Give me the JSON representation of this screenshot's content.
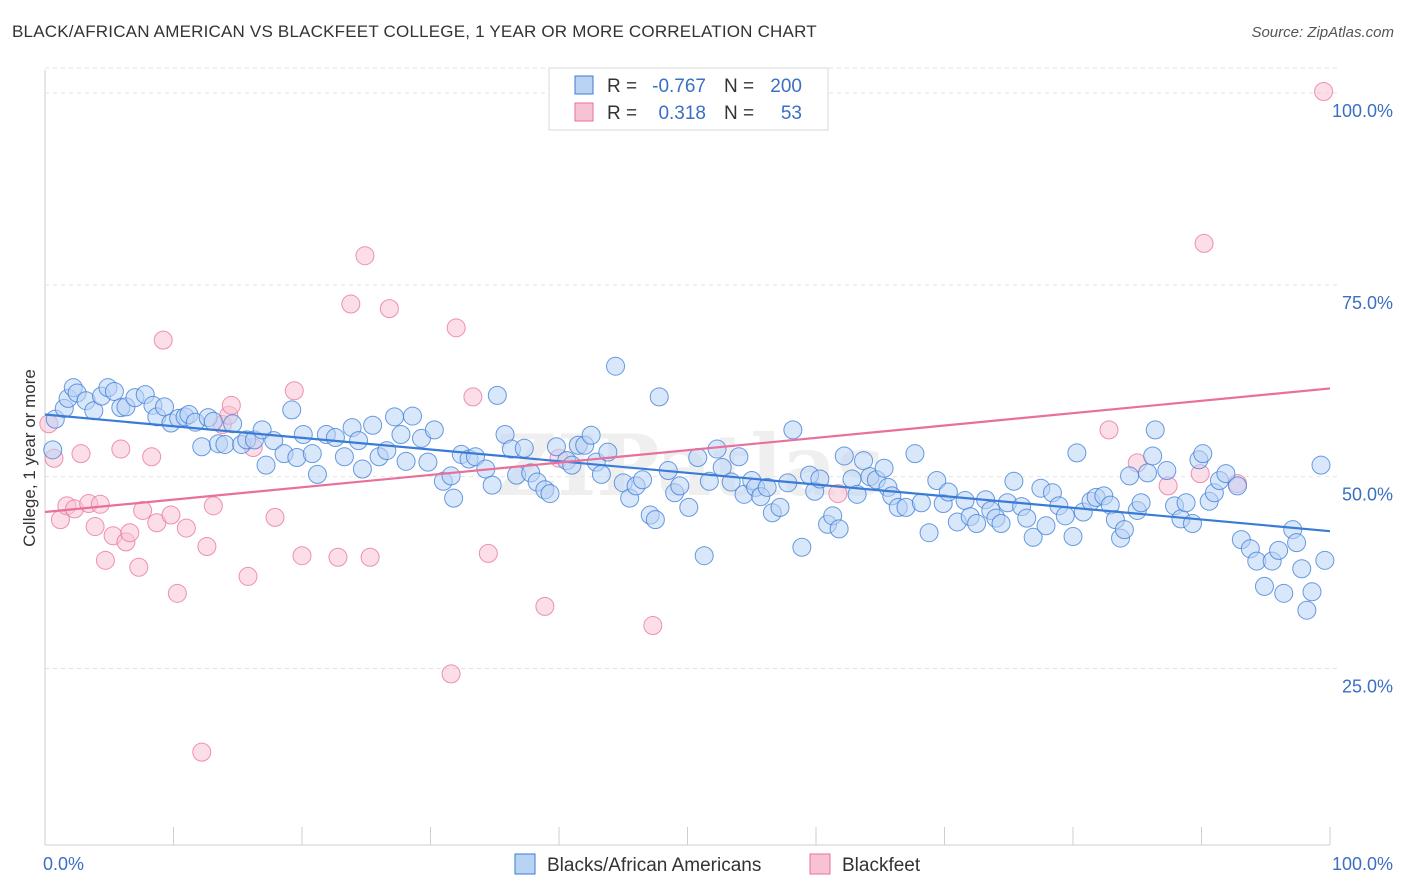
{
  "title": "BLACK/AFRICAN AMERICAN VS BLACKFEET COLLEGE, 1 YEAR OR MORE CORRELATION CHART",
  "source": "Source: ZipAtlas.com",
  "watermark": "ZIPatlas",
  "colors": {
    "blue": "#3a7bd5",
    "blue_fill": "#b9d3f5",
    "pink": "#e8709a",
    "pink_fill": "#f7c3d4",
    "axis_label": "#3a6fc4"
  },
  "chart_data": {
    "type": "scatter",
    "title": "BLACK/AFRICAN AMERICAN VS BLACKFEET COLLEGE, 1 YEAR OR MORE CORRELATION CHART",
    "xlabel": "",
    "ylabel": "College, 1 year or more",
    "xlim": [
      0,
      100
    ],
    "ylim": [
      2,
      103
    ],
    "x_tick_labels": [
      "0.0%",
      "100.0%"
    ],
    "y_ticks": [
      25,
      50,
      75,
      100
    ],
    "y_tick_labels": [
      "25.0%",
      "50.0%",
      "75.0%",
      "100.0%"
    ],
    "grid": true,
    "legend_top": [
      {
        "r_label": "R =",
        "r_value": "-0.767",
        "n_label": "N =",
        "n_value": "200"
      },
      {
        "r_label": "R =",
        "r_value": "0.318",
        "n_label": "N =",
        "n_value": "53"
      }
    ],
    "series": [
      {
        "name": "Blacks/African Americans",
        "trend": [
          [
            0,
            58.1
          ],
          [
            100,
            42.9
          ]
        ],
        "points": [
          [
            0.6,
            53.5
          ],
          [
            0.8,
            57.5
          ],
          [
            1.5,
            58.9
          ],
          [
            1.8,
            60.2
          ],
          [
            2.2,
            61.6
          ],
          [
            2.5,
            60.9
          ],
          [
            3.2,
            59.9
          ],
          [
            3.8,
            58.6
          ],
          [
            4.4,
            60.5
          ],
          [
            4.9,
            61.6
          ],
          [
            5.4,
            61.1
          ],
          [
            5.9,
            59.0
          ],
          [
            6.3,
            59.1
          ],
          [
            7.0,
            60.3
          ],
          [
            7.8,
            60.7
          ],
          [
            8.4,
            59.3
          ],
          [
            8.7,
            57.8
          ],
          [
            9.3,
            59.1
          ],
          [
            9.8,
            57.0
          ],
          [
            10.4,
            57.6
          ],
          [
            10.9,
            57.8
          ],
          [
            11.2,
            58.1
          ],
          [
            11.7,
            57.1
          ],
          [
            12.2,
            53.9
          ],
          [
            12.7,
            57.7
          ],
          [
            13.1,
            57.2
          ],
          [
            13.5,
            54.3
          ],
          [
            14.0,
            54.2
          ],
          [
            14.6,
            56.9
          ],
          [
            15.3,
            54.2
          ],
          [
            15.7,
            54.8
          ],
          [
            16.3,
            54.8
          ],
          [
            16.9,
            56.1
          ],
          [
            17.2,
            51.5
          ],
          [
            17.8,
            54.7
          ],
          [
            18.6,
            53.0
          ],
          [
            19.2,
            58.7
          ],
          [
            19.6,
            52.5
          ],
          [
            20.1,
            55.5
          ],
          [
            20.8,
            53.0
          ],
          [
            21.2,
            50.3
          ],
          [
            21.9,
            55.5
          ],
          [
            22.6,
            55.1
          ],
          [
            23.3,
            52.6
          ],
          [
            23.9,
            56.4
          ],
          [
            24.4,
            54.7
          ],
          [
            24.7,
            51.0
          ],
          [
            25.5,
            56.7
          ],
          [
            26.0,
            52.6
          ],
          [
            26.6,
            53.4
          ],
          [
            27.2,
            57.8
          ],
          [
            27.7,
            55.5
          ],
          [
            28.1,
            52.0
          ],
          [
            28.6,
            57.9
          ],
          [
            29.3,
            55.0
          ],
          [
            29.8,
            51.9
          ],
          [
            30.3,
            56.1
          ],
          [
            31.0,
            49.4
          ],
          [
            31.6,
            50.1
          ],
          [
            31.8,
            47.2
          ],
          [
            32.4,
            52.9
          ],
          [
            33.0,
            52.3
          ],
          [
            33.5,
            52.6
          ],
          [
            34.3,
            51.0
          ],
          [
            34.8,
            48.9
          ],
          [
            35.2,
            60.6
          ],
          [
            35.8,
            55.5
          ],
          [
            36.3,
            53.6
          ],
          [
            36.7,
            50.2
          ],
          [
            37.3,
            53.7
          ],
          [
            37.8,
            50.5
          ],
          [
            38.3,
            49.3
          ],
          [
            38.9,
            48.3
          ],
          [
            39.3,
            47.8
          ],
          [
            39.8,
            53.9
          ],
          [
            40.6,
            52.1
          ],
          [
            41.0,
            51.5
          ],
          [
            41.5,
            54.1
          ],
          [
            42.0,
            54.1
          ],
          [
            42.5,
            55.4
          ],
          [
            42.9,
            51.9
          ],
          [
            43.3,
            50.3
          ],
          [
            43.8,
            53.2
          ],
          [
            44.4,
            64.4
          ],
          [
            45.0,
            49.2
          ],
          [
            45.5,
            47.2
          ],
          [
            46.0,
            48.8
          ],
          [
            46.5,
            49.6
          ],
          [
            47.1,
            45.0
          ],
          [
            47.5,
            44.4
          ],
          [
            47.8,
            60.4
          ],
          [
            48.5,
            50.8
          ],
          [
            49.0,
            47.9
          ],
          [
            49.4,
            48.8
          ],
          [
            50.1,
            46.0
          ],
          [
            50.8,
            52.5
          ],
          [
            51.3,
            39.7
          ],
          [
            51.7,
            49.4
          ],
          [
            52.3,
            53.6
          ],
          [
            52.7,
            51.2
          ],
          [
            53.4,
            49.3
          ],
          [
            54.0,
            52.6
          ],
          [
            54.4,
            47.7
          ],
          [
            55.0,
            49.5
          ],
          [
            55.3,
            48.6
          ],
          [
            55.7,
            47.4
          ],
          [
            56.2,
            48.6
          ],
          [
            56.6,
            45.3
          ],
          [
            57.2,
            46.0
          ],
          [
            57.8,
            49.2
          ],
          [
            58.2,
            56.1
          ],
          [
            58.9,
            40.8
          ],
          [
            59.5,
            50.2
          ],
          [
            59.9,
            48.1
          ],
          [
            60.3,
            49.7
          ],
          [
            60.9,
            43.8
          ],
          [
            61.3,
            44.9
          ],
          [
            61.8,
            43.2
          ],
          [
            62.2,
            52.7
          ],
          [
            62.8,
            49.7
          ],
          [
            63.2,
            47.7
          ],
          [
            63.7,
            52.1
          ],
          [
            64.2,
            50.0
          ],
          [
            64.7,
            49.6
          ],
          [
            65.3,
            51.1
          ],
          [
            65.6,
            48.6
          ],
          [
            65.9,
            47.5
          ],
          [
            66.4,
            46.0
          ],
          [
            67.0,
            46.0
          ],
          [
            67.7,
            53.0
          ],
          [
            68.2,
            46.6
          ],
          [
            68.8,
            42.7
          ],
          [
            69.4,
            49.5
          ],
          [
            69.9,
            46.5
          ],
          [
            70.3,
            48.0
          ],
          [
            71.0,
            44.1
          ],
          [
            71.6,
            46.9
          ],
          [
            72.0,
            44.8
          ],
          [
            72.5,
            43.9
          ],
          [
            73.2,
            47.0
          ],
          [
            73.6,
            45.6
          ],
          [
            74.0,
            44.6
          ],
          [
            74.4,
            43.9
          ],
          [
            74.9,
            46.6
          ],
          [
            75.4,
            49.4
          ],
          [
            76.0,
            46.1
          ],
          [
            76.4,
            44.6
          ],
          [
            76.9,
            42.1
          ],
          [
            77.5,
            48.5
          ],
          [
            77.9,
            43.6
          ],
          [
            78.4,
            47.9
          ],
          [
            78.9,
            46.2
          ],
          [
            79.4,
            44.9
          ],
          [
            80.0,
            42.2
          ],
          [
            80.3,
            53.1
          ],
          [
            80.8,
            45.4
          ],
          [
            81.4,
            46.8
          ],
          [
            81.8,
            47.3
          ],
          [
            82.4,
            47.5
          ],
          [
            82.9,
            46.3
          ],
          [
            83.3,
            44.4
          ],
          [
            83.7,
            42.0
          ],
          [
            84.0,
            43.1
          ],
          [
            84.4,
            50.1
          ],
          [
            85.0,
            45.6
          ],
          [
            85.3,
            46.6
          ],
          [
            85.8,
            50.5
          ],
          [
            86.2,
            52.7
          ],
          [
            86.4,
            56.1
          ],
          [
            87.3,
            50.8
          ],
          [
            87.9,
            46.2
          ],
          [
            88.4,
            44.5
          ],
          [
            88.8,
            46.6
          ],
          [
            89.3,
            43.9
          ],
          [
            89.8,
            52.2
          ],
          [
            90.1,
            53.0
          ],
          [
            90.6,
            46.8
          ],
          [
            91.0,
            47.9
          ],
          [
            91.4,
            49.5
          ],
          [
            91.9,
            50.4
          ],
          [
            92.8,
            48.8
          ],
          [
            93.1,
            41.8
          ],
          [
            93.8,
            40.6
          ],
          [
            94.3,
            39.0
          ],
          [
            94.9,
            35.7
          ],
          [
            95.5,
            39.0
          ],
          [
            96.0,
            40.4
          ],
          [
            96.4,
            34.8
          ],
          [
            97.1,
            43.1
          ],
          [
            97.4,
            41.4
          ],
          [
            97.8,
            38.0
          ],
          [
            98.2,
            32.6
          ],
          [
            98.6,
            35.0
          ],
          [
            99.3,
            51.5
          ],
          [
            99.6,
            39.1
          ]
        ]
      },
      {
        "name": "Blackfeet",
        "trend": [
          [
            0,
            45.4
          ],
          [
            100,
            61.5
          ]
        ],
        "points": [
          [
            0.3,
            56.9
          ],
          [
            0.7,
            52.4
          ],
          [
            1.2,
            44.4
          ],
          [
            1.7,
            46.2
          ],
          [
            2.3,
            45.8
          ],
          [
            2.8,
            53.0
          ],
          [
            3.4,
            46.5
          ],
          [
            3.9,
            43.5
          ],
          [
            4.3,
            46.4
          ],
          [
            4.7,
            39.1
          ],
          [
            5.3,
            42.3
          ],
          [
            5.9,
            53.6
          ],
          [
            6.3,
            41.5
          ],
          [
            6.6,
            42.7
          ],
          [
            7.3,
            38.2
          ],
          [
            7.6,
            45.6
          ],
          [
            8.3,
            52.6
          ],
          [
            8.7,
            44.0
          ],
          [
            9.2,
            67.8
          ],
          [
            9.8,
            45.0
          ],
          [
            10.3,
            34.8
          ],
          [
            11.0,
            43.3
          ],
          [
            12.2,
            14.1
          ],
          [
            12.6,
            40.9
          ],
          [
            13.1,
            46.2
          ],
          [
            13.8,
            56.8
          ],
          [
            14.3,
            58.0
          ],
          [
            14.5,
            59.3
          ],
          [
            15.8,
            37.0
          ],
          [
            16.2,
            53.8
          ],
          [
            17.9,
            44.7
          ],
          [
            19.4,
            61.2
          ],
          [
            20.0,
            39.7
          ],
          [
            22.8,
            39.5
          ],
          [
            23.8,
            72.5
          ],
          [
            24.9,
            78.8
          ],
          [
            25.3,
            39.5
          ],
          [
            26.8,
            71.9
          ],
          [
            31.6,
            24.3
          ],
          [
            32.0,
            69.4
          ],
          [
            33.3,
            60.4
          ],
          [
            34.5,
            40.0
          ],
          [
            38.9,
            33.1
          ],
          [
            40.0,
            52.4
          ],
          [
            47.3,
            30.6
          ],
          [
            61.7,
            47.8
          ],
          [
            82.8,
            56.1
          ],
          [
            85.0,
            51.8
          ],
          [
            87.4,
            48.8
          ],
          [
            89.9,
            50.4
          ],
          [
            92.8,
            49.1
          ],
          [
            90.2,
            80.4
          ],
          [
            99.5,
            100.2
          ]
        ]
      }
    ],
    "legend": [
      {
        "name": "Blacks/African Americans",
        "color": "#b9d3f5"
      },
      {
        "name": "Blackfeet",
        "color": "#f7c3d4"
      }
    ]
  }
}
